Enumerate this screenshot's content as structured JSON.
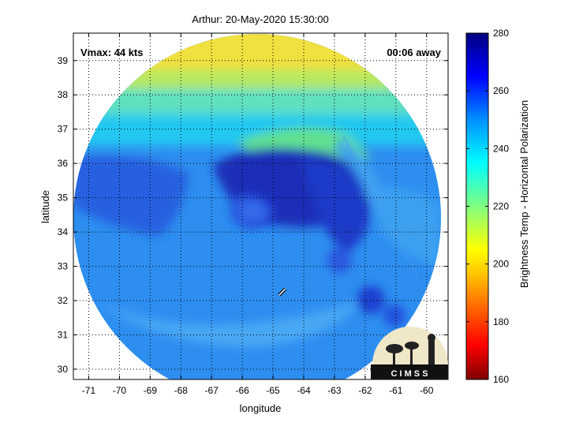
{
  "chart_data": {
    "type": "heatmap",
    "title": "Arthur: 20-May-2020 15:30:00",
    "xlabel": "longitude",
    "ylabel": "latitude",
    "xlim": [
      -71.5,
      -59.3
    ],
    "ylim": [
      29.7,
      39.8
    ],
    "x_ticks": [
      -71,
      -70,
      -69,
      -68,
      -67,
      -66,
      -65,
      -64,
      -63,
      -62,
      -61,
      -60
    ],
    "y_ticks": [
      30,
      31,
      32,
      33,
      34,
      35,
      36,
      37,
      38,
      39
    ],
    "grid": true,
    "annotations": {
      "vmax": "Vmax: 44 kts",
      "time_offset": "00:06 away"
    },
    "storm_center": {
      "lon": -64.7,
      "lat": 32.25
    },
    "colorbar": {
      "label": "Brightness Temp - Horizontal Polarization",
      "min": 160,
      "max": 280,
      "ticks": [
        160,
        180,
        200,
        220,
        240,
        260,
        280
      ]
    },
    "logo_text": "C I M S S"
  }
}
